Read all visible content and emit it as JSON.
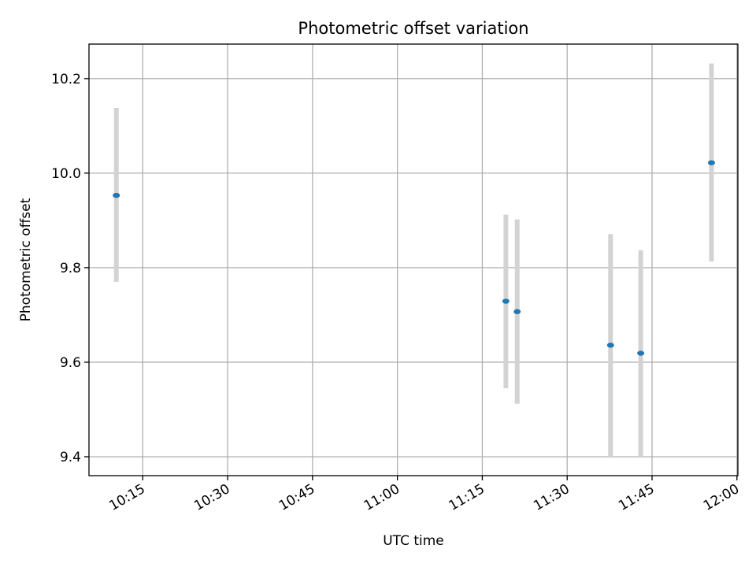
{
  "chart_data": {
    "type": "scatter",
    "title": "Photometric offset variation",
    "xlabel": "UTC time",
    "ylabel": "Photometric offset",
    "x_ticks": [
      "10:15",
      "10:30",
      "10:45",
      "11:00",
      "11:15",
      "11:30",
      "11:45",
      "12:00"
    ],
    "y_ticks": [
      "9.4",
      "9.6",
      "9.8",
      "10.0",
      "10.2"
    ],
    "xlim": [
      "10:05:30",
      "12:00:10"
    ],
    "ylim": [
      9.36,
      10.273
    ],
    "grid": true,
    "point_color": "#1f77b4",
    "errorbar_color": "#d3d3d3",
    "points": [
      {
        "time": "10:10:20",
        "y": 9.953,
        "y_low": 9.77,
        "y_high": 10.138
      },
      {
        "time": "11:19:10",
        "y": 9.729,
        "y_low": 9.545,
        "y_high": 9.912
      },
      {
        "time": "11:21:10",
        "y": 9.707,
        "y_low": 9.512,
        "y_high": 9.902
      },
      {
        "time": "11:37:40",
        "y": 9.636,
        "y_low": 9.4,
        "y_high": 9.871
      },
      {
        "time": "11:43:00",
        "y": 9.619,
        "y_low": 9.4,
        "y_high": 9.837
      },
      {
        "time": "11:55:30",
        "y": 10.022,
        "y_low": 9.813,
        "y_high": 10.232
      }
    ]
  }
}
